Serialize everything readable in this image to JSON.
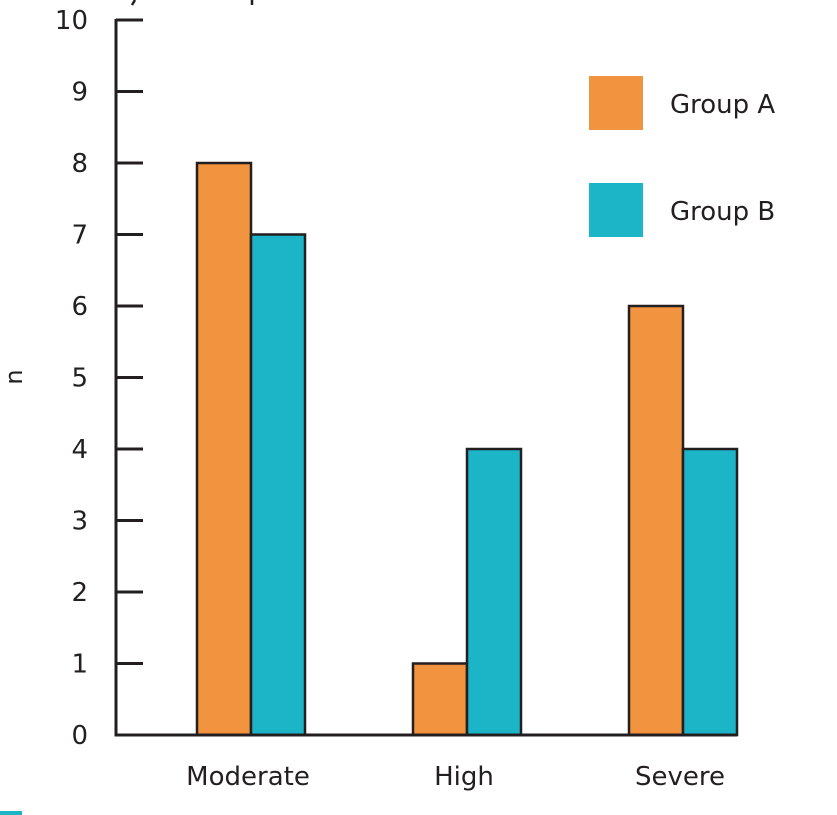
{
  "chart_data": {
    "type": "bar",
    "title": "",
    "xlabel": "",
    "ylabel": "n",
    "ylim": [
      0,
      10
    ],
    "yticks": [
      0,
      1,
      2,
      3,
      4,
      5,
      6,
      7,
      8,
      9,
      10
    ],
    "categories": [
      "Moderate",
      "High",
      "Severe"
    ],
    "series": [
      {
        "name": "Group A",
        "color": "#f2943f",
        "values": [
          8,
          1,
          6
        ]
      },
      {
        "name": "Group B",
        "color": "#1cb5c8",
        "values": [
          7,
          4,
          4
        ]
      }
    ],
    "grid": false,
    "legend": "top-right",
    "bar_outline_color": "#231f20"
  }
}
